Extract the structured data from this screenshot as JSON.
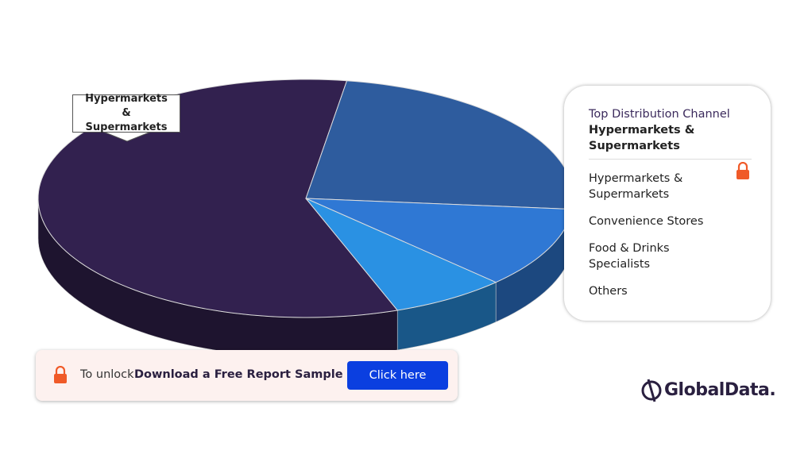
{
  "chart_data": {
    "type": "pie3d",
    "legend_title": "Top Distribution Channel",
    "categories": [
      "Hypermarkets & Supermarkets",
      "Convenience Stores",
      "Food & Drinks Specialists",
      "Others"
    ],
    "values": [
      58,
      24,
      11,
      7
    ],
    "colors": [
      "#32214f",
      "#2e5c9e",
      "#2f78d4",
      "#2a91e3"
    ]
  },
  "banner": {
    "prefix": "To unlock",
    "text": "Download a Free Report Sample",
    "button": "Click here"
  },
  "brand": "GlobalData."
}
